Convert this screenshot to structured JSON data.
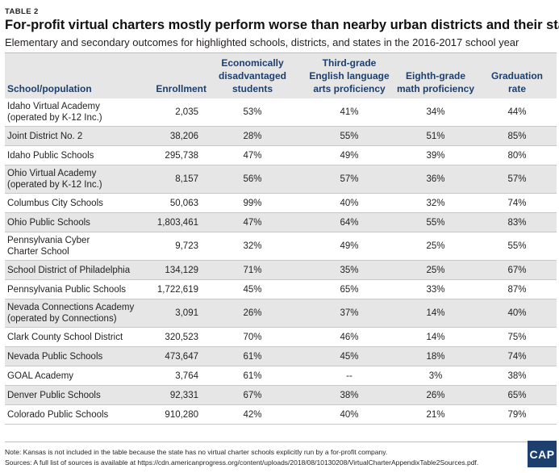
{
  "table_label": "TABLE 2",
  "title": "For-profit virtual charters mostly perform worse than nearby urban districts and their states",
  "subtitle": "Elementary and secondary outcomes for highlighted schools, districts, and states in the 2016-2017 school year",
  "headers": {
    "name": "School/population",
    "enrollment": "Enrollment",
    "econ": [
      "Economically",
      "disadvantaged",
      "students"
    ],
    "ela": [
      "Third-grade",
      "English language",
      "arts proficiency"
    ],
    "math": [
      "Eighth-grade",
      "math proficiency"
    ],
    "grad": [
      "Graduation",
      "rate"
    ]
  },
  "rows": [
    {
      "name": [
        "Idaho Virtual Academy",
        "(operated by K-12 Inc.)"
      ],
      "enrollment": "2,035",
      "econ": "53%",
      "ela": "41%",
      "math": "34%",
      "grad": "44%"
    },
    {
      "name": [
        "Joint District No. 2"
      ],
      "enrollment": "38,206",
      "econ": "28%",
      "ela": "55%",
      "math": "51%",
      "grad": "85%"
    },
    {
      "name": [
        "Idaho Public Schools"
      ],
      "enrollment": "295,738",
      "econ": "47%",
      "ela": "49%",
      "math": "39%",
      "grad": "80%"
    },
    {
      "name": [
        "Ohio Virtual Academy",
        "(operated by K-12 Inc.)"
      ],
      "enrollment": "8,157",
      "econ": "56%",
      "ela": "57%",
      "math": "36%",
      "grad": "57%"
    },
    {
      "name": [
        "Columbus City Schools"
      ],
      "enrollment": "50,063",
      "econ": "99%",
      "ela": "40%",
      "math": "32%",
      "grad": "74%"
    },
    {
      "name": [
        "Ohio Public Schools"
      ],
      "enrollment": "1,803,461",
      "econ": "47%",
      "ela": "64%",
      "math": "55%",
      "grad": "83%"
    },
    {
      "name": [
        "Pennsylvania Cyber",
        "Charter School"
      ],
      "enrollment": "9,723",
      "econ": "32%",
      "ela": "49%",
      "math": "25%",
      "grad": "55%"
    },
    {
      "name": [
        "School District of Philadelphia"
      ],
      "enrollment": "134,129",
      "econ": "71%",
      "ela": "35%",
      "math": "25%",
      "grad": "67%"
    },
    {
      "name": [
        "Pennsylvania Public Schools"
      ],
      "enrollment": "1,722,619",
      "econ": "45%",
      "ela": "65%",
      "math": "33%",
      "grad": "87%"
    },
    {
      "name": [
        "Nevada Connections Academy",
        "(operated by Connections)"
      ],
      "enrollment": "3,091",
      "econ": "26%",
      "ela": "37%",
      "math": "14%",
      "grad": "40%"
    },
    {
      "name": [
        "Clark County School District"
      ],
      "enrollment": "320,523",
      "econ": "70%",
      "ela": "46%",
      "math": "14%",
      "grad": "75%"
    },
    {
      "name": [
        "Nevada Public Schools"
      ],
      "enrollment": "473,647",
      "econ": "61%",
      "ela": "45%",
      "math": "18%",
      "grad": "74%"
    },
    {
      "name": [
        "GOAL Academy"
      ],
      "enrollment": "3,764",
      "econ": "61%",
      "ela": "--",
      "math": "3%",
      "grad": "38%"
    },
    {
      "name": [
        "Denver Public Schools"
      ],
      "enrollment": "92,331",
      "econ": "67%",
      "ela": "38%",
      "math": "26%",
      "grad": "65%"
    },
    {
      "name": [
        "Colorado Public Schools"
      ],
      "enrollment": "910,280",
      "econ": "42%",
      "ela": "40%",
      "math": "21%",
      "grad": "79%"
    }
  ],
  "note": "Note: Kansas is not included in the table because the state has no virtual charter schools explicitly run by a for-profit company.",
  "sources": "Sources: A full list of sources is available at https://cdn.americanprogress.org/content/uploads/2018/08/10130208/VirtualCharterAppendixTable2Sources.pdf.",
  "logo_text": "CAP"
}
